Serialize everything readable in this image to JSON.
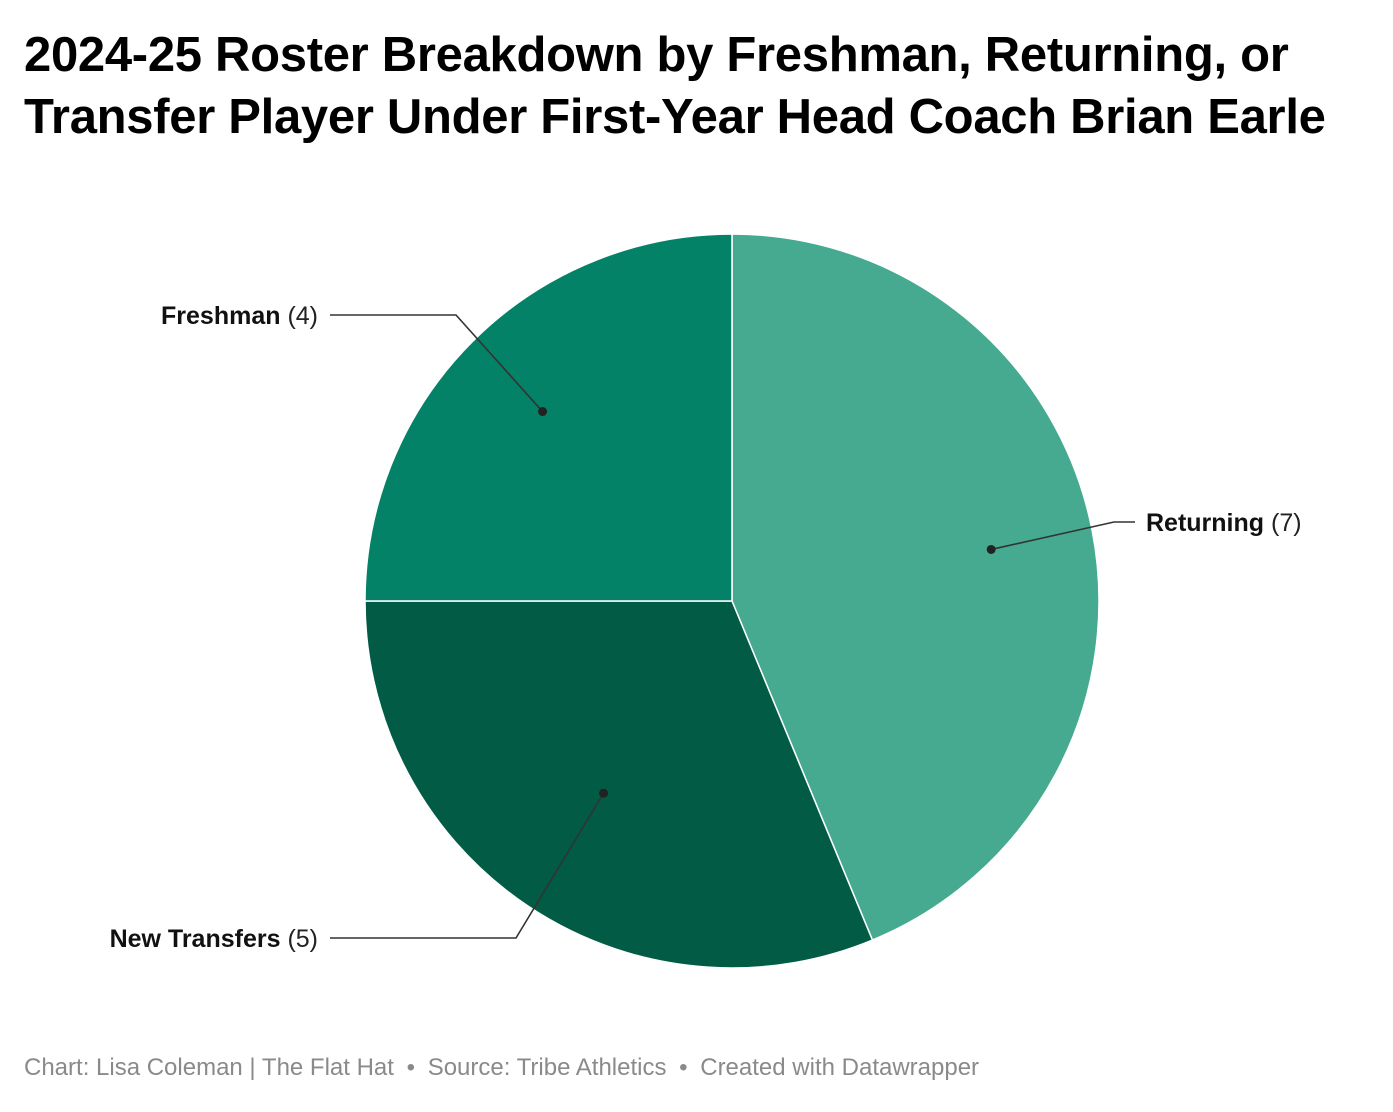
{
  "title": "2024-25 Roster Breakdown by Freshman, Returning, or Transfer Player Under First-Year Head Coach Brian Earle",
  "chart_data": {
    "type": "pie",
    "categories": [
      "Returning",
      "New Transfers",
      "Freshman"
    ],
    "values": [
      7,
      5,
      4
    ],
    "count_labels": [
      "(7)",
      "(5)",
      "(4)"
    ],
    "colors": [
      "#45aa8f",
      "#025c45",
      "#048267"
    ],
    "slice_border_color": "#ffffff",
    "start_angle_deg": 0,
    "direction": "clockwise"
  },
  "footer": {
    "chart_credit": "Chart: Lisa Coleman | The Flat Hat",
    "source": "Source: Tribe Athletics",
    "created_with": "Created with Datawrapper",
    "separator": "•"
  }
}
